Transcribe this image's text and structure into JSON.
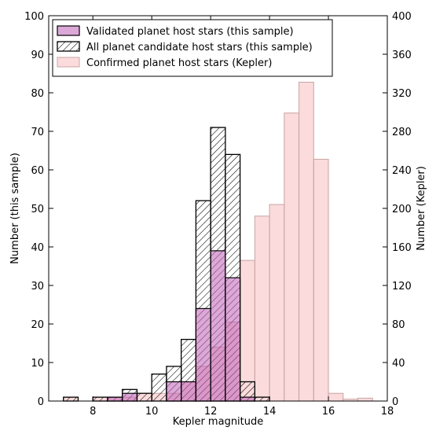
{
  "chart_data": {
    "type": "bar",
    "xlabel": "Kepler magnitude",
    "ylabel_left": "Number (this sample)",
    "ylabel_right": "Number (Kepler)",
    "xlim": [
      6.5,
      18
    ],
    "ylim_left": [
      0,
      100
    ],
    "ylim_right": [
      0,
      400
    ],
    "x_ticks": [
      8,
      10,
      12,
      14,
      16,
      18
    ],
    "y_ticks_left": [
      0,
      10,
      20,
      30,
      40,
      50,
      60,
      70,
      80,
      90,
      100
    ],
    "y_ticks_right": [
      0,
      40,
      80,
      120,
      160,
      200,
      240,
      280,
      320,
      360,
      400
    ],
    "bin_width": 0.5,
    "legend_position": "top-left",
    "series": [
      {
        "name": "Confirmed planet host stars (Kepler)",
        "axis": "right",
        "color": "#f9cfd0",
        "edge": "#c8a4a4",
        "style": "solid-translucent",
        "bins": [
          {
            "x": 7.0,
            "value": 4
          },
          {
            "x": 8.0,
            "value": 4
          },
          {
            "x": 8.5,
            "value": 4
          },
          {
            "x": 9.0,
            "value": 4
          },
          {
            "x": 9.5,
            "value": 8
          },
          {
            "x": 10.0,
            "value": 8
          },
          {
            "x": 10.5,
            "value": 8
          },
          {
            "x": 11.0,
            "value": 20
          },
          {
            "x": 11.5,
            "value": 36
          },
          {
            "x": 12.0,
            "value": 56
          },
          {
            "x": 12.5,
            "value": 82
          },
          {
            "x": 13.0,
            "value": 146
          },
          {
            "x": 13.5,
            "value": 192
          },
          {
            "x": 14.0,
            "value": 204
          },
          {
            "x": 14.5,
            "value": 299
          },
          {
            "x": 15.0,
            "value": 331
          },
          {
            "x": 15.5,
            "value": 251
          },
          {
            "x": 16.0,
            "value": 8
          },
          {
            "x": 16.5,
            "value": 2
          },
          {
            "x": 17.0,
            "value": 3
          }
        ]
      },
      {
        "name": "All planet candidate host stars (this sample)",
        "axis": "left",
        "color": "#ffffff",
        "edge": "#000000",
        "style": "hatched",
        "bins": [
          {
            "x": 7.0,
            "value": 1
          },
          {
            "x": 8.0,
            "value": 1
          },
          {
            "x": 8.5,
            "value": 1
          },
          {
            "x": 9.0,
            "value": 3
          },
          {
            "x": 9.5,
            "value": 2
          },
          {
            "x": 10.0,
            "value": 7
          },
          {
            "x": 10.5,
            "value": 9
          },
          {
            "x": 11.0,
            "value": 16
          },
          {
            "x": 11.5,
            "value": 52
          },
          {
            "x": 12.0,
            "value": 71
          },
          {
            "x": 12.5,
            "value": 64
          },
          {
            "x": 13.0,
            "value": 5
          },
          {
            "x": 13.5,
            "value": 1
          }
        ]
      },
      {
        "name": "Validated planet host stars (this sample)",
        "axis": "left",
        "color": "#c060b8",
        "edge": "#000000",
        "style": "solid-translucent",
        "bins": [
          {
            "x": 8.5,
            "value": 1
          },
          {
            "x": 9.0,
            "value": 2
          },
          {
            "x": 10.5,
            "value": 5
          },
          {
            "x": 11.0,
            "value": 5
          },
          {
            "x": 11.5,
            "value": 24
          },
          {
            "x": 12.0,
            "value": 39
          },
          {
            "x": 12.5,
            "value": 32
          },
          {
            "x": 13.0,
            "value": 1
          }
        ]
      }
    ],
    "legend": [
      {
        "label": "Validated planet host stars (this sample)",
        "swatch": "validated"
      },
      {
        "label": "All planet candidate host stars (this sample)",
        "swatch": "hatched"
      },
      {
        "label": "Confirmed planet host stars (Kepler)",
        "swatch": "kepler"
      }
    ]
  }
}
